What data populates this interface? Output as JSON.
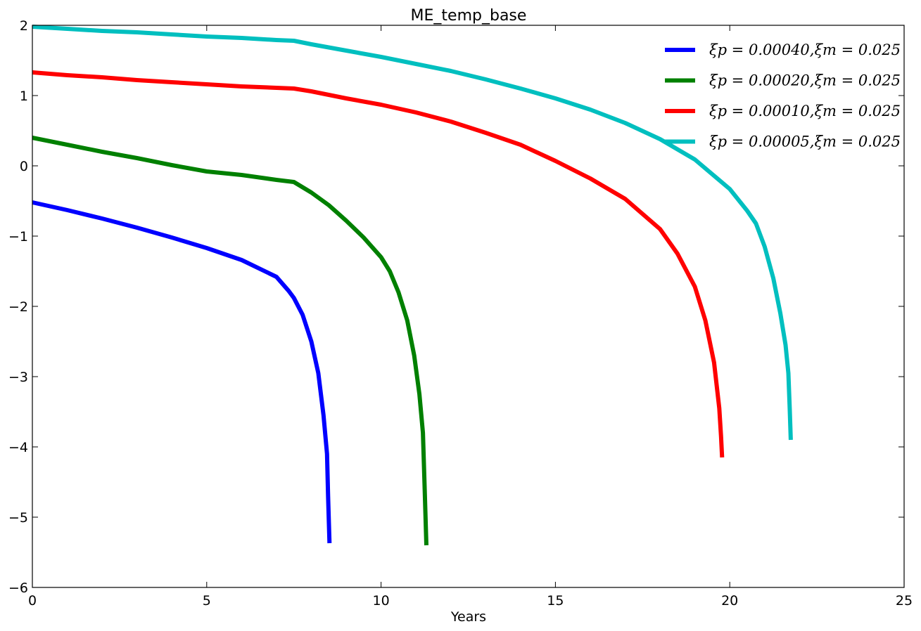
{
  "chart_data": {
    "type": "line",
    "title": "ME_temp_base",
    "xlabel": "Years",
    "ylabel": "",
    "xlim": [
      0,
      25
    ],
    "ylim": [
      -6,
      2
    ],
    "xticks": [
      "0",
      "5",
      "10",
      "15",
      "20",
      "25"
    ],
    "yticks": [
      "2",
      "1",
      "0",
      "−1",
      "−2",
      "−3",
      "−4",
      "−5",
      "−6"
    ],
    "grid": false,
    "legend_position": "top-right",
    "series": [
      {
        "name": "ξp = 0.00040,ξm = 0.025",
        "color": "#0000ff",
        "points": [
          [
            0,
            -0.52
          ],
          [
            1,
            -0.63
          ],
          [
            2,
            -0.75
          ],
          [
            3,
            -0.88
          ],
          [
            4,
            -1.02
          ],
          [
            5,
            -1.17
          ],
          [
            6,
            -1.34
          ],
          [
            7,
            -1.58
          ],
          [
            7.35,
            -1.78
          ],
          [
            7.5,
            -1.88
          ],
          [
            7.75,
            -2.12
          ],
          [
            8.0,
            -2.5
          ],
          [
            8.2,
            -2.95
          ],
          [
            8.35,
            -3.55
          ],
          [
            8.45,
            -4.1
          ],
          [
            8.48,
            -4.7
          ],
          [
            8.52,
            -5.37
          ]
        ]
      },
      {
        "name": "ξp = 0.00020,ξm = 0.025",
        "color": "#008000",
        "points": [
          [
            0,
            0.4
          ],
          [
            1,
            0.3
          ],
          [
            2,
            0.2
          ],
          [
            3,
            0.11
          ],
          [
            4,
            0.01
          ],
          [
            5,
            -0.08
          ],
          [
            6,
            -0.13
          ],
          [
            7,
            -0.2
          ],
          [
            7.5,
            -0.23
          ],
          [
            8,
            -0.38
          ],
          [
            8.5,
            -0.56
          ],
          [
            9.0,
            -0.78
          ],
          [
            9.5,
            -1.02
          ],
          [
            10.0,
            -1.3
          ],
          [
            10.25,
            -1.5
          ],
          [
            10.5,
            -1.8
          ],
          [
            10.75,
            -2.2
          ],
          [
            10.95,
            -2.7
          ],
          [
            11.1,
            -3.25
          ],
          [
            11.2,
            -3.8
          ],
          [
            11.25,
            -4.6
          ],
          [
            11.3,
            -5.4
          ]
        ]
      },
      {
        "name": "ξp = 0.00010,ξm = 0.025",
        "color": "#ff0000",
        "points": [
          [
            0,
            1.33
          ],
          [
            1,
            1.29
          ],
          [
            2,
            1.26
          ],
          [
            3,
            1.22
          ],
          [
            4,
            1.19
          ],
          [
            5,
            1.16
          ],
          [
            6,
            1.13
          ],
          [
            7,
            1.11
          ],
          [
            7.5,
            1.1
          ],
          [
            8,
            1.06
          ],
          [
            9,
            0.96
          ],
          [
            10,
            0.87
          ],
          [
            11,
            0.76
          ],
          [
            12,
            0.63
          ],
          [
            13,
            0.47
          ],
          [
            14,
            0.3
          ],
          [
            15,
            0.07
          ],
          [
            16,
            -0.18
          ],
          [
            17,
            -0.47
          ],
          [
            18,
            -0.9
          ],
          [
            18.5,
            -1.25
          ],
          [
            19.0,
            -1.72
          ],
          [
            19.3,
            -2.2
          ],
          [
            19.55,
            -2.8
          ],
          [
            19.7,
            -3.45
          ],
          [
            19.75,
            -3.85
          ],
          [
            19.78,
            -4.15
          ]
        ]
      },
      {
        "name": "ξp = 0.00005,ξm = 0.025",
        "color": "#00bfbf",
        "points": [
          [
            0,
            1.98
          ],
          [
            1,
            1.95
          ],
          [
            2,
            1.92
          ],
          [
            3,
            1.9
          ],
          [
            4,
            1.87
          ],
          [
            5,
            1.84
          ],
          [
            6,
            1.82
          ],
          [
            7,
            1.79
          ],
          [
            7.5,
            1.78
          ],
          [
            8,
            1.73
          ],
          [
            9,
            1.64
          ],
          [
            10,
            1.55
          ],
          [
            11,
            1.45
          ],
          [
            12,
            1.35
          ],
          [
            13,
            1.23
          ],
          [
            14,
            1.1
          ],
          [
            15,
            0.96
          ],
          [
            16,
            0.8
          ],
          [
            17,
            0.61
          ],
          [
            18,
            0.38
          ],
          [
            19,
            0.09
          ],
          [
            20,
            -0.33
          ],
          [
            20.5,
            -0.64
          ],
          [
            20.75,
            -0.82
          ],
          [
            21.0,
            -1.15
          ],
          [
            21.25,
            -1.6
          ],
          [
            21.45,
            -2.1
          ],
          [
            21.6,
            -2.55
          ],
          [
            21.68,
            -2.95
          ],
          [
            21.72,
            -3.45
          ],
          [
            21.75,
            -3.9
          ]
        ]
      }
    ]
  }
}
